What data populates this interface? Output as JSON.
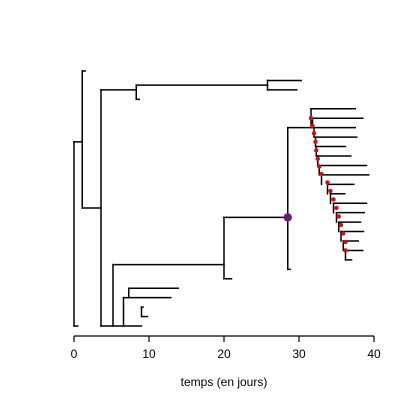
{
  "chart_data": {
    "type": "tree",
    "xlabel": "temps (en jours)",
    "xlim": [
      0,
      40
    ],
    "xticks": [
      0,
      10,
      20,
      30,
      40
    ],
    "colors": {
      "branch": "#000000",
      "highlight_node": "#6a1b7a",
      "marker": "#cc1111"
    },
    "highlighted_node": {
      "x": 28.5,
      "row": 15.5
    },
    "tips": [
      {
        "row": 0,
        "x": 1.5
      },
      {
        "row": 1,
        "x": 30.3
      },
      {
        "row": 2,
        "x": 29.7
      },
      {
        "row": 3,
        "x": 8.7
      },
      {
        "row": 4,
        "x": 37.5
      },
      {
        "row": 5,
        "x": 38.5
      },
      {
        "row": 6,
        "x": 37.5
      },
      {
        "row": 7,
        "x": 37.7
      },
      {
        "row": 8,
        "x": 36.2
      },
      {
        "row": 9,
        "x": 36.9
      },
      {
        "row": 10,
        "x": 39.0
      },
      {
        "row": 11,
        "x": 39.3
      },
      {
        "row": 12,
        "x": 37.3
      },
      {
        "row": 13,
        "x": 36.1
      },
      {
        "row": 14,
        "x": 39.0
      },
      {
        "row": 15,
        "x": 38.7
      },
      {
        "row": 16,
        "x": 38.2
      },
      {
        "row": 17,
        "x": 38.6
      },
      {
        "row": 18,
        "x": 37.9
      },
      {
        "row": 19,
        "x": 38.5
      },
      {
        "row": 20,
        "x": 37.0
      },
      {
        "row": 21,
        "x": 28.8
      },
      {
        "row": 22,
        "x": 21.0
      },
      {
        "row": 23,
        "x": 13.9
      },
      {
        "row": 24,
        "x": 12.9
      },
      {
        "row": 25,
        "x": 9.2
      },
      {
        "row": 26,
        "x": 9.8
      },
      {
        "row": 27,
        "x": 0.5
      }
    ],
    "segments": [
      [
        0.0,
        7.5,
        0.0,
        27.0
      ],
      [
        0.0,
        7.5,
        1.1,
        7.5
      ],
      [
        0.0,
        27.0,
        0.5,
        27.0
      ],
      [
        1.1,
        0.0,
        1.1,
        14.5
      ],
      [
        1.1,
        0.0,
        1.5,
        0.0
      ],
      [
        1.1,
        14.5,
        3.6,
        14.5
      ],
      [
        3.6,
        2.0,
        3.6,
        27.0
      ],
      [
        3.6,
        2.0,
        8.3,
        2.0
      ],
      [
        3.6,
        27.0,
        5.2,
        27.0
      ],
      [
        8.3,
        1.5,
        8.3,
        3.0
      ],
      [
        8.3,
        1.5,
        25.8,
        1.5
      ],
      [
        8.3,
        3.0,
        8.7,
        3.0
      ],
      [
        25.8,
        1.0,
        25.8,
        2.0
      ],
      [
        25.8,
        1.0,
        30.3,
        1.0
      ],
      [
        25.8,
        2.0,
        29.7,
        2.0
      ],
      [
        5.2,
        20.5,
        5.2,
        27.0
      ],
      [
        5.2,
        20.5,
        20.0,
        20.5
      ],
      [
        5.2,
        27.0,
        6.6,
        27.0
      ],
      [
        20.0,
        15.5,
        20.0,
        22.0
      ],
      [
        20.0,
        15.5,
        28.5,
        15.5
      ],
      [
        20.0,
        22.0,
        21.0,
        22.0
      ],
      [
        28.5,
        6.0,
        28.5,
        21.0
      ],
      [
        28.5,
        6.0,
        31.6,
        6.0
      ],
      [
        28.5,
        21.0,
        28.8,
        21.0
      ],
      [
        31.6,
        4.0,
        31.6,
        6.0
      ],
      [
        31.6,
        4.0,
        37.5,
        4.0
      ],
      [
        31.8,
        5.0,
        31.8,
        6.0
      ],
      [
        31.8,
        5.0,
        38.5,
        5.0
      ],
      [
        32.0,
        6.0,
        32.0,
        7.0
      ],
      [
        32.0,
        6.0,
        37.5,
        6.0
      ],
      [
        32.2,
        7.0,
        32.2,
        8.0
      ],
      [
        32.2,
        7.0,
        37.7,
        7.0
      ],
      [
        32.3,
        8.0,
        32.3,
        9.0
      ],
      [
        32.3,
        8.0,
        36.2,
        8.0
      ],
      [
        32.5,
        9.0,
        32.5,
        10.0
      ],
      [
        32.5,
        9.0,
        36.9,
        9.0
      ],
      [
        32.7,
        10.0,
        32.7,
        11.0
      ],
      [
        32.7,
        10.0,
        39.0,
        10.0
      ],
      [
        33.0,
        11.0,
        33.0,
        12.0
      ],
      [
        33.0,
        11.0,
        39.3,
        11.0
      ],
      [
        33.8,
        12.0,
        33.8,
        13.0
      ],
      [
        33.8,
        12.0,
        37.3,
        12.0
      ],
      [
        34.2,
        13.0,
        34.2,
        14.0
      ],
      [
        34.2,
        13.0,
        36.1,
        13.0
      ],
      [
        34.6,
        14.0,
        34.6,
        15.0
      ],
      [
        34.6,
        14.0,
        39.0,
        14.0
      ],
      [
        35.0,
        15.0,
        35.0,
        16.0
      ],
      [
        35.0,
        15.0,
        38.7,
        15.0
      ],
      [
        35.3,
        16.0,
        35.3,
        17.0
      ],
      [
        35.3,
        16.0,
        38.2,
        16.0
      ],
      [
        35.6,
        17.0,
        35.6,
        18.0
      ],
      [
        35.6,
        17.0,
        38.6,
        17.0
      ],
      [
        35.9,
        18.0,
        35.9,
        19.0
      ],
      [
        35.9,
        18.0,
        37.9,
        18.0
      ],
      [
        36.2,
        19.0,
        36.2,
        20.0
      ],
      [
        36.2,
        19.0,
        38.5,
        19.0
      ],
      [
        36.2,
        20.0,
        37.0,
        20.0
      ],
      [
        6.6,
        24.0,
        6.6,
        27.0
      ],
      [
        6.6,
        24.0,
        7.3,
        24.0
      ],
      [
        6.6,
        27.0,
        9.0,
        27.0
      ],
      [
        7.3,
        23.0,
        7.3,
        24.0
      ],
      [
        7.3,
        23.0,
        13.9,
        23.0
      ],
      [
        7.3,
        24.0,
        12.9,
        24.0
      ],
      [
        9.0,
        25.0,
        9.0,
        26.0
      ],
      [
        9.0,
        25.0,
        9.2,
        25.0
      ],
      [
        9.0,
        26.0,
        9.8,
        26.0
      ]
    ],
    "markers": [
      {
        "x": 31.6,
        "row": 5.0
      },
      {
        "x": 31.8,
        "row": 5.8
      },
      {
        "x": 32.0,
        "row": 6.6
      },
      {
        "x": 32.2,
        "row": 7.5
      },
      {
        "x": 32.3,
        "row": 8.4
      },
      {
        "x": 32.5,
        "row": 9.3
      },
      {
        "x": 32.7,
        "row": 10.1
      },
      {
        "x": 33.0,
        "row": 10.9
      },
      {
        "x": 33.8,
        "row": 11.8
      },
      {
        "x": 34.2,
        "row": 12.7
      },
      {
        "x": 34.6,
        "row": 13.6
      },
      {
        "x": 35.0,
        "row": 14.5
      },
      {
        "x": 35.3,
        "row": 15.4
      },
      {
        "x": 35.6,
        "row": 16.3
      },
      {
        "x": 35.9,
        "row": 17.2
      },
      {
        "x": 36.2,
        "row": 18.1
      },
      {
        "x": 36.2,
        "row": 19.0
      }
    ]
  }
}
